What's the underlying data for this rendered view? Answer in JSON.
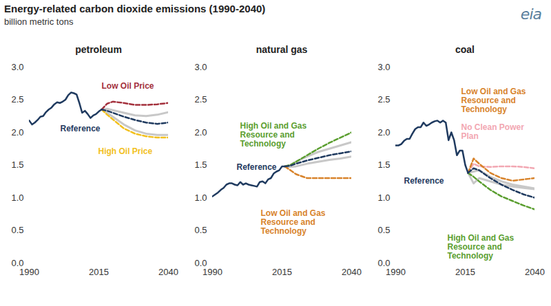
{
  "title": "Energy-related carbon dioxide emissions (1990-2040)",
  "subtitle": "billion metric tons",
  "logo_text": "eia",
  "chart_data": [
    {
      "type": "line",
      "title": "petroleum",
      "x": [
        1990,
        1991,
        1992,
        1993,
        1994,
        1995,
        1996,
        1997,
        1998,
        1999,
        2000,
        2001,
        2002,
        2003,
        2004,
        2005,
        2006,
        2007,
        2008,
        2009,
        2010,
        2011,
        2012,
        2013,
        2014,
        2015,
        2016,
        2018,
        2020,
        2024,
        2028,
        2032,
        2036,
        2040
      ],
      "xlim": [
        1990,
        2040
      ],
      "xticks": [
        1990,
        2015,
        2040
      ],
      "ylim": [
        0,
        3
      ],
      "yticks": [
        {
          "value": 0,
          "label": "0.0"
        },
        {
          "value": 0.5,
          "label": "0.5"
        },
        {
          "value": 1,
          "label": "1.0"
        },
        {
          "value": 1.5,
          "label": "1.5"
        },
        {
          "value": 2,
          "label": "2.0"
        },
        {
          "value": 2.5,
          "label": "2.5"
        },
        {
          "value": 3,
          "label": "3.0"
        }
      ],
      "grid": false,
      "series": [
        {
          "color": "#c8c8c8",
          "line_style": "solid",
          "values": [
            null,
            null,
            null,
            null,
            null,
            null,
            null,
            null,
            null,
            null,
            null,
            null,
            null,
            null,
            null,
            null,
            null,
            null,
            null,
            null,
            null,
            null,
            null,
            null,
            null,
            null,
            2.35,
            2.36,
            2.34,
            2.3,
            2.26,
            2.25,
            2.27,
            2.31
          ]
        },
        {
          "color": "#c8c8c8",
          "line_style": "solid",
          "values": [
            null,
            null,
            null,
            null,
            null,
            null,
            null,
            null,
            null,
            null,
            null,
            null,
            null,
            null,
            null,
            null,
            null,
            null,
            null,
            null,
            null,
            null,
            null,
            null,
            null,
            null,
            2.35,
            2.3,
            2.24,
            2.12,
            2.03,
            1.98,
            1.96,
            1.96
          ]
        },
        {
          "name": "Low Oil Price",
          "color": "#a3303c",
          "line_style": "dashed",
          "values": [
            null,
            null,
            null,
            null,
            null,
            null,
            null,
            null,
            null,
            null,
            null,
            null,
            null,
            null,
            null,
            null,
            null,
            null,
            null,
            null,
            null,
            null,
            null,
            null,
            null,
            null,
            2.35,
            2.44,
            2.47,
            2.45,
            2.42,
            2.42,
            2.43,
            2.45
          ]
        },
        {
          "name": "High Oil Price",
          "color": "#f2c01e",
          "line_style": "dashed",
          "values": [
            null,
            null,
            null,
            null,
            null,
            null,
            null,
            null,
            null,
            null,
            null,
            null,
            null,
            null,
            null,
            null,
            null,
            null,
            null,
            null,
            null,
            null,
            null,
            null,
            null,
            null,
            2.35,
            2.27,
            2.2,
            2.06,
            1.98,
            1.94,
            1.92,
            1.92
          ]
        },
        {
          "name": "Reference",
          "color": "#1f3a5f",
          "line_style": "dashed",
          "values": [
            null,
            null,
            null,
            null,
            null,
            null,
            null,
            null,
            null,
            null,
            null,
            null,
            null,
            null,
            null,
            null,
            null,
            null,
            null,
            null,
            null,
            null,
            null,
            null,
            null,
            null,
            2.35,
            2.33,
            2.3,
            2.24,
            2.19,
            2.15,
            2.13,
            2.15
          ]
        },
        {
          "color": "#1f3a5f",
          "line_style": "solid",
          "values": [
            2.18,
            2.12,
            2.15,
            2.19,
            2.24,
            2.25,
            2.31,
            2.35,
            2.38,
            2.43,
            2.46,
            2.45,
            2.47,
            2.5,
            2.57,
            2.61,
            2.6,
            2.58,
            2.45,
            2.3,
            2.33,
            2.28,
            2.22,
            2.26,
            2.28,
            2.32,
            2.35,
            null,
            null,
            null,
            null,
            null,
            null,
            null
          ]
        }
      ]
    },
    {
      "type": "line",
      "title": "natural gas",
      "x": [
        1990,
        1991,
        1992,
        1993,
        1994,
        1995,
        1996,
        1997,
        1998,
        1999,
        2000,
        2001,
        2002,
        2003,
        2004,
        2005,
        2006,
        2007,
        2008,
        2009,
        2010,
        2011,
        2012,
        2013,
        2014,
        2015,
        2016,
        2018,
        2020,
        2024,
        2028,
        2032,
        2036,
        2040
      ],
      "xlim": [
        1990,
        2040
      ],
      "xticks": [
        1990,
        2015,
        2040
      ],
      "ylim": [
        0,
        3
      ],
      "yticks": [
        {
          "value": 0,
          "label": "0.0"
        },
        {
          "value": 0.5,
          "label": "0.5"
        },
        {
          "value": 1,
          "label": "1.0"
        },
        {
          "value": 1.5,
          "label": "1.5"
        },
        {
          "value": 2,
          "label": "2.0"
        },
        {
          "value": 2.5,
          "label": "2.5"
        },
        {
          "value": 3,
          "label": "3.0"
        }
      ],
      "grid": false,
      "series": [
        {
          "color": "#c8c8c8",
          "line_style": "solid",
          "values": [
            null,
            null,
            null,
            null,
            null,
            null,
            null,
            null,
            null,
            null,
            null,
            null,
            null,
            null,
            null,
            null,
            null,
            null,
            null,
            null,
            null,
            null,
            null,
            null,
            null,
            null,
            1.48,
            1.5,
            1.55,
            1.63,
            1.7,
            1.75,
            1.8,
            1.85
          ]
        },
        {
          "color": "#c8c8c8",
          "line_style": "solid",
          "values": [
            null,
            null,
            null,
            null,
            null,
            null,
            null,
            null,
            null,
            null,
            null,
            null,
            null,
            null,
            null,
            null,
            null,
            null,
            null,
            null,
            null,
            null,
            null,
            null,
            null,
            null,
            1.48,
            1.47,
            1.48,
            1.52,
            1.55,
            1.58,
            1.6,
            1.63
          ]
        },
        {
          "name": "High Oil and Gas Resource and Technology",
          "color": "#5a9e2f",
          "line_style": "dashed",
          "values": [
            null,
            null,
            null,
            null,
            null,
            null,
            null,
            null,
            null,
            null,
            null,
            null,
            null,
            null,
            null,
            null,
            null,
            null,
            null,
            null,
            null,
            null,
            null,
            null,
            null,
            null,
            1.48,
            1.5,
            1.55,
            1.65,
            1.75,
            1.84,
            1.92,
            2.0
          ]
        },
        {
          "name": "Low Oil and Gas Resource and Technology",
          "color": "#d8832b",
          "line_style": "dashed",
          "values": [
            null,
            null,
            null,
            null,
            null,
            null,
            null,
            null,
            null,
            null,
            null,
            null,
            null,
            null,
            null,
            null,
            null,
            null,
            null,
            null,
            null,
            null,
            null,
            null,
            null,
            null,
            1.48,
            1.42,
            1.36,
            1.3,
            1.3,
            1.3,
            1.3,
            1.3
          ]
        },
        {
          "name": "Reference",
          "color": "#1f3a5f",
          "line_style": "dashed",
          "values": [
            null,
            null,
            null,
            null,
            null,
            null,
            null,
            null,
            null,
            null,
            null,
            null,
            null,
            null,
            null,
            null,
            null,
            null,
            null,
            null,
            null,
            null,
            null,
            null,
            null,
            null,
            1.48,
            1.49,
            1.52,
            1.57,
            1.61,
            1.65,
            1.68,
            1.71
          ]
        },
        {
          "color": "#1f3a5f",
          "line_style": "solid",
          "values": [
            1.02,
            1.05,
            1.08,
            1.12,
            1.15,
            1.2,
            1.22,
            1.22,
            1.2,
            1.19,
            1.24,
            1.2,
            1.22,
            1.2,
            1.19,
            1.18,
            1.17,
            1.24,
            1.25,
            1.22,
            1.28,
            1.3,
            1.37,
            1.4,
            1.42,
            1.48,
            1.48,
            null,
            null,
            null,
            null,
            null,
            null,
            null
          ]
        }
      ]
    },
    {
      "type": "line",
      "title": "coal",
      "x": [
        1990,
        1991,
        1992,
        1993,
        1994,
        1995,
        1996,
        1997,
        1998,
        1999,
        2000,
        2001,
        2002,
        2003,
        2004,
        2005,
        2006,
        2007,
        2008,
        2009,
        2010,
        2011,
        2012,
        2013,
        2014,
        2015,
        2016,
        2018,
        2020,
        2024,
        2028,
        2032,
        2036,
        2040
      ],
      "xlim": [
        1990,
        2040
      ],
      "xticks": [
        1990,
        2015,
        2040
      ],
      "ylim": [
        0,
        3
      ],
      "yticks": [
        {
          "value": 0,
          "label": "0.0"
        },
        {
          "value": 0.5,
          "label": "0.5"
        },
        {
          "value": 1,
          "label": "1.0"
        },
        {
          "value": 1.5,
          "label": "1.5"
        },
        {
          "value": 2,
          "label": "2.0"
        },
        {
          "value": 2.5,
          "label": "2.5"
        },
        {
          "value": 3,
          "label": "3.0"
        }
      ],
      "grid": false,
      "series": [
        {
          "color": "#c8c8c8",
          "line_style": "solid",
          "values": [
            null,
            null,
            null,
            null,
            null,
            null,
            null,
            null,
            null,
            null,
            null,
            null,
            null,
            null,
            null,
            null,
            null,
            null,
            null,
            null,
            null,
            null,
            null,
            null,
            null,
            null,
            1.38,
            1.22,
            1.3,
            1.25,
            1.2,
            1.17,
            1.15,
            1.13
          ]
        },
        {
          "color": "#c8c8c8",
          "line_style": "solid",
          "values": [
            null,
            null,
            null,
            null,
            null,
            null,
            null,
            null,
            null,
            null,
            null,
            null,
            null,
            null,
            null,
            null,
            null,
            null,
            null,
            null,
            null,
            null,
            null,
            null,
            null,
            null,
            1.38,
            1.4,
            1.42,
            1.32,
            1.25,
            1.2,
            1.17,
            1.14
          ]
        },
        {
          "name": "No Clean Power Plan",
          "color": "#f2a7b2",
          "line_style": "dashed",
          "values": [
            null,
            null,
            null,
            null,
            null,
            null,
            null,
            null,
            null,
            null,
            null,
            null,
            null,
            null,
            null,
            null,
            null,
            null,
            null,
            null,
            null,
            null,
            null,
            null,
            null,
            null,
            1.38,
            1.52,
            1.48,
            1.47,
            1.48,
            1.48,
            1.47,
            1.45
          ]
        },
        {
          "name": "Low Oil and Gas Resource and Technology",
          "color": "#d8832b",
          "line_style": "dashed",
          "values": [
            null,
            null,
            null,
            null,
            null,
            null,
            null,
            null,
            null,
            null,
            null,
            null,
            null,
            null,
            null,
            null,
            null,
            null,
            null,
            null,
            null,
            null,
            null,
            null,
            null,
            null,
            1.38,
            1.6,
            1.52,
            1.38,
            1.3,
            1.26,
            1.28,
            1.3
          ]
        },
        {
          "name": "High Oil and Gas Resource and Technology",
          "color": "#5a9e2f",
          "line_style": "dashed",
          "values": [
            null,
            null,
            null,
            null,
            null,
            null,
            null,
            null,
            null,
            null,
            null,
            null,
            null,
            null,
            null,
            null,
            null,
            null,
            null,
            null,
            null,
            null,
            null,
            null,
            null,
            null,
            1.38,
            1.32,
            1.25,
            1.12,
            1.02,
            0.95,
            0.88,
            0.82
          ]
        },
        {
          "name": "Reference",
          "color": "#1f3a5f",
          "line_style": "dashed",
          "values": [
            null,
            null,
            null,
            null,
            null,
            null,
            null,
            null,
            null,
            null,
            null,
            null,
            null,
            null,
            null,
            null,
            null,
            null,
            null,
            null,
            null,
            null,
            null,
            null,
            null,
            null,
            1.38,
            1.45,
            1.42,
            1.3,
            1.2,
            1.12,
            1.05,
            1.0
          ]
        },
        {
          "color": "#1f3a5f",
          "line_style": "solid",
          "values": [
            1.8,
            1.8,
            1.82,
            1.87,
            1.9,
            1.9,
            1.98,
            2.05,
            2.08,
            2.08,
            2.15,
            2.1,
            2.12,
            2.15,
            2.17,
            2.18,
            2.15,
            2.18,
            2.15,
            1.88,
            2.0,
            1.88,
            1.65,
            1.72,
            1.72,
            1.5,
            1.38,
            null,
            null,
            null,
            null,
            null,
            null,
            null
          ]
        }
      ]
    }
  ]
}
